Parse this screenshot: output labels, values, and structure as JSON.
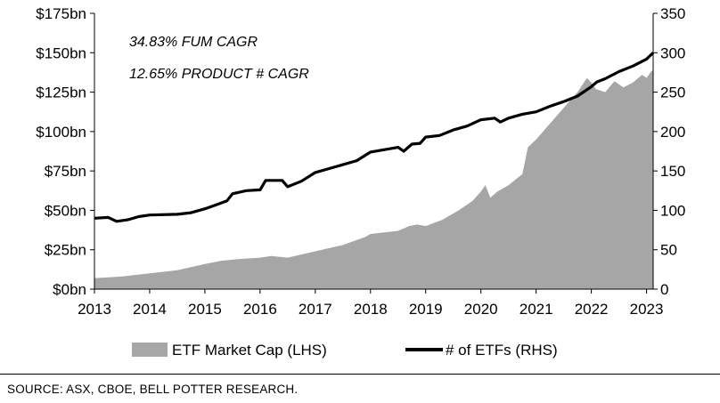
{
  "chart_data": {
    "type": "area",
    "x_ticks": [
      "2013",
      "2014",
      "2015",
      "2016",
      "2017",
      "2018",
      "2019",
      "2020",
      "2021",
      "2022",
      "2023"
    ],
    "y_left": {
      "ticks": [
        "$0bn",
        "$25bn",
        "$50bn",
        "$75bn",
        "$100bn",
        "$125bn",
        "$150bn",
        "$175bn"
      ],
      "range": [
        0,
        175
      ]
    },
    "y_right": {
      "ticks": [
        "0",
        "50",
        "100",
        "150",
        "200",
        "250",
        "300",
        "350"
      ],
      "range": [
        0,
        350
      ]
    },
    "annotations": [
      "34.83% FUM CAGR",
      "12.65% PRODUCT # CAGR"
    ],
    "series": [
      {
        "name": "ETF Market Cap (LHS)",
        "axis": "left",
        "style": "area",
        "color": "#a6a6a6",
        "points": [
          [
            2013.0,
            7
          ],
          [
            2013.5,
            8
          ],
          [
            2014.0,
            10
          ],
          [
            2014.5,
            12
          ],
          [
            2015.0,
            16
          ],
          [
            2015.3,
            18
          ],
          [
            2015.6,
            19
          ],
          [
            2016.0,
            20
          ],
          [
            2016.2,
            21
          ],
          [
            2016.5,
            20
          ],
          [
            2017.0,
            24
          ],
          [
            2017.5,
            28
          ],
          [
            2017.9,
            33
          ],
          [
            2018.0,
            35
          ],
          [
            2018.5,
            37
          ],
          [
            2018.7,
            40
          ],
          [
            2018.85,
            41
          ],
          [
            2019.0,
            40
          ],
          [
            2019.3,
            44
          ],
          [
            2019.6,
            50
          ],
          [
            2019.85,
            56
          ],
          [
            2020.0,
            62
          ],
          [
            2020.08,
            66
          ],
          [
            2020.17,
            58
          ],
          [
            2020.3,
            62
          ],
          [
            2020.5,
            66
          ],
          [
            2020.75,
            73
          ],
          [
            2020.85,
            90
          ],
          [
            2021.0,
            95
          ],
          [
            2021.25,
            105
          ],
          [
            2021.5,
            115
          ],
          [
            2021.75,
            125
          ],
          [
            2021.92,
            134
          ],
          [
            2022.0,
            131
          ],
          [
            2022.08,
            127
          ],
          [
            2022.25,
            125
          ],
          [
            2022.42,
            132
          ],
          [
            2022.58,
            128
          ],
          [
            2022.75,
            131
          ],
          [
            2022.92,
            136
          ],
          [
            2023.0,
            134
          ],
          [
            2023.08,
            138
          ],
          [
            2023.12,
            139
          ]
        ]
      },
      {
        "name": "# of ETFs (RHS)",
        "axis": "right",
        "style": "line",
        "color": "#000000",
        "points": [
          [
            2013.0,
            90
          ],
          [
            2013.25,
            91
          ],
          [
            2013.4,
            86
          ],
          [
            2013.6,
            88
          ],
          [
            2013.8,
            92
          ],
          [
            2014.0,
            94
          ],
          [
            2014.5,
            95
          ],
          [
            2014.75,
            97
          ],
          [
            2015.0,
            102
          ],
          [
            2015.25,
            108
          ],
          [
            2015.4,
            112
          ],
          [
            2015.5,
            121
          ],
          [
            2015.75,
            125
          ],
          [
            2016.0,
            126
          ],
          [
            2016.1,
            138
          ],
          [
            2016.4,
            138
          ],
          [
            2016.5,
            130
          ],
          [
            2016.75,
            137
          ],
          [
            2017.0,
            148
          ],
          [
            2017.5,
            158
          ],
          [
            2017.75,
            163
          ],
          [
            2018.0,
            174
          ],
          [
            2018.5,
            180
          ],
          [
            2018.6,
            175
          ],
          [
            2018.75,
            184
          ],
          [
            2018.9,
            185
          ],
          [
            2019.0,
            193
          ],
          [
            2019.25,
            195
          ],
          [
            2019.5,
            202
          ],
          [
            2019.75,
            207
          ],
          [
            2020.0,
            215
          ],
          [
            2020.25,
            217
          ],
          [
            2020.35,
            212
          ],
          [
            2020.5,
            217
          ],
          [
            2020.75,
            222
          ],
          [
            2021.0,
            225
          ],
          [
            2021.25,
            232
          ],
          [
            2021.5,
            238
          ],
          [
            2021.75,
            245
          ],
          [
            2022.0,
            257
          ],
          [
            2022.1,
            263
          ],
          [
            2022.25,
            267
          ],
          [
            2022.5,
            276
          ],
          [
            2022.75,
            283
          ],
          [
            2023.0,
            292
          ],
          [
            2023.12,
            300
          ]
        ]
      }
    ],
    "legend": {
      "placement": "bottom-center"
    },
    "grid": false
  },
  "footer": {
    "source": "SOURCE: ASX, CBOE, BELL POTTER RESEARCH."
  }
}
